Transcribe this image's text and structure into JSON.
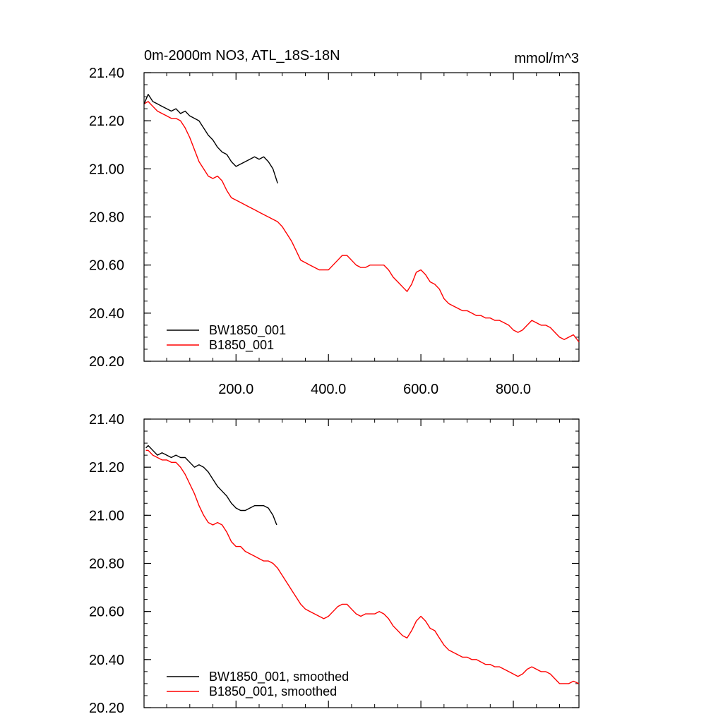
{
  "chart_data": [
    {
      "type": "line",
      "title": "0m-2000m NO3, ATL_18S-18N",
      "units": "mmol/m^3",
      "xlabel": "",
      "ylabel": "",
      "xlim": [
        1,
        942
      ],
      "ylim": [
        20.2,
        21.4
      ],
      "x_ticks": [
        200,
        400,
        600,
        800
      ],
      "x_tick_labels": [
        "200.0",
        "400.0",
        "600.0",
        "800.0"
      ],
      "y_ticks": [
        20.2,
        20.4,
        20.6,
        20.8,
        21.0,
        21.2,
        21.4
      ],
      "y_tick_labels": [
        "20.20",
        "20.40",
        "20.60",
        "20.80",
        "21.00",
        "21.20",
        "21.40"
      ],
      "grid": false,
      "legend": "bottom-left",
      "series": [
        {
          "name": "BW1850_001",
          "color": "#000000",
          "x": [
            1,
            10,
            20,
            30,
            40,
            50,
            60,
            70,
            80,
            90,
            100,
            110,
            120,
            130,
            140,
            150,
            160,
            170,
            180,
            190,
            200,
            210,
            220,
            230,
            240,
            250,
            260,
            270,
            280,
            290
          ],
          "y": [
            21.27,
            21.31,
            21.28,
            21.27,
            21.26,
            21.25,
            21.24,
            21.25,
            21.23,
            21.24,
            21.22,
            21.21,
            21.2,
            21.17,
            21.14,
            21.12,
            21.09,
            21.07,
            21.06,
            21.03,
            21.01,
            21.02,
            21.03,
            21.04,
            21.05,
            21.04,
            21.05,
            21.03,
            21.0,
            20.94
          ]
        },
        {
          "name": "B1850_001",
          "color": "#ff0000",
          "x": [
            1,
            10,
            20,
            30,
            40,
            50,
            60,
            70,
            80,
            90,
            100,
            110,
            120,
            130,
            140,
            150,
            160,
            170,
            180,
            190,
            200,
            210,
            220,
            230,
            240,
            250,
            260,
            270,
            280,
            290,
            300,
            310,
            320,
            330,
            340,
            350,
            360,
            370,
            380,
            390,
            400,
            410,
            420,
            430,
            440,
            450,
            460,
            470,
            480,
            490,
            500,
            510,
            520,
            530,
            540,
            550,
            560,
            570,
            580,
            590,
            600,
            610,
            620,
            630,
            640,
            650,
            660,
            670,
            680,
            690,
            700,
            710,
            720,
            730,
            740,
            750,
            760,
            770,
            780,
            790,
            800,
            810,
            820,
            830,
            840,
            850,
            860,
            870,
            880,
            890,
            900,
            910,
            920,
            930,
            942
          ],
          "y": [
            21.27,
            21.28,
            21.26,
            21.24,
            21.23,
            21.22,
            21.21,
            21.21,
            21.2,
            21.17,
            21.13,
            21.08,
            21.03,
            21.0,
            20.97,
            20.96,
            20.97,
            20.95,
            20.91,
            20.88,
            20.87,
            20.86,
            20.85,
            20.84,
            20.83,
            20.82,
            20.81,
            20.8,
            20.79,
            20.78,
            20.76,
            20.73,
            20.7,
            20.66,
            20.62,
            20.61,
            20.6,
            20.59,
            20.58,
            20.58,
            20.58,
            20.6,
            20.62,
            20.64,
            20.64,
            20.62,
            20.6,
            20.59,
            20.59,
            20.6,
            20.6,
            20.6,
            20.6,
            20.58,
            20.55,
            20.53,
            20.51,
            20.49,
            20.52,
            20.57,
            20.58,
            20.56,
            20.53,
            20.52,
            20.5,
            20.46,
            20.44,
            20.43,
            20.42,
            20.41,
            20.41,
            20.4,
            20.39,
            20.39,
            20.38,
            20.38,
            20.37,
            20.37,
            20.36,
            20.35,
            20.33,
            20.32,
            20.33,
            20.35,
            20.37,
            20.36,
            20.35,
            20.35,
            20.34,
            20.32,
            20.3,
            20.29,
            20.3,
            20.31,
            20.28
          ]
        }
      ]
    },
    {
      "type": "line",
      "title": "",
      "xlabel": "",
      "ylabel": "",
      "xlim": [
        1,
        942
      ],
      "ylim": [
        20.2,
        21.4
      ],
      "x_ticks": [
        200,
        400,
        600,
        800
      ],
      "x_tick_labels": [],
      "y_ticks": [
        20.2,
        20.4,
        20.6,
        20.8,
        21.0,
        21.2,
        21.4
      ],
      "y_tick_labels": [
        "20.20",
        "20.40",
        "20.60",
        "20.80",
        "21.00",
        "21.20",
        "21.40"
      ],
      "grid": false,
      "legend": "bottom-left",
      "series": [
        {
          "name": "BW1850_001, smoothed",
          "color": "#000000",
          "x": [
            5,
            10,
            20,
            30,
            40,
            50,
            60,
            70,
            80,
            90,
            100,
            110,
            120,
            130,
            140,
            150,
            160,
            170,
            180,
            190,
            200,
            210,
            220,
            230,
            240,
            250,
            260,
            270,
            280,
            288
          ],
          "y": [
            21.28,
            21.29,
            21.27,
            21.25,
            21.26,
            21.25,
            21.24,
            21.25,
            21.24,
            21.24,
            21.22,
            21.2,
            21.21,
            21.2,
            21.18,
            21.15,
            21.12,
            21.1,
            21.08,
            21.05,
            21.03,
            21.02,
            21.02,
            21.03,
            21.04,
            21.04,
            21.04,
            21.03,
            21.0,
            20.96
          ]
        },
        {
          "name": "B1850_001, smoothed",
          "color": "#ff0000",
          "x": [
            5,
            10,
            20,
            30,
            40,
            50,
            60,
            70,
            80,
            90,
            100,
            110,
            120,
            130,
            140,
            150,
            160,
            170,
            180,
            190,
            200,
            210,
            220,
            230,
            240,
            250,
            260,
            270,
            280,
            290,
            300,
            310,
            320,
            330,
            340,
            350,
            360,
            370,
            380,
            390,
            400,
            410,
            420,
            430,
            440,
            450,
            460,
            470,
            480,
            490,
            500,
            510,
            520,
            530,
            540,
            550,
            560,
            570,
            580,
            590,
            600,
            610,
            620,
            630,
            640,
            650,
            660,
            670,
            680,
            690,
            700,
            710,
            720,
            730,
            740,
            750,
            760,
            770,
            780,
            790,
            800,
            810,
            820,
            830,
            840,
            850,
            860,
            870,
            880,
            890,
            900,
            910,
            920,
            930,
            942
          ],
          "y": [
            21.27,
            21.27,
            21.25,
            21.24,
            21.23,
            21.23,
            21.22,
            21.22,
            21.2,
            21.17,
            21.13,
            21.09,
            21.04,
            21.0,
            20.97,
            20.96,
            20.97,
            20.96,
            20.93,
            20.89,
            20.87,
            20.87,
            20.85,
            20.84,
            20.83,
            20.82,
            20.81,
            20.81,
            20.8,
            20.78,
            20.75,
            20.72,
            20.69,
            20.66,
            20.63,
            20.61,
            20.6,
            20.59,
            20.58,
            20.57,
            20.58,
            20.6,
            20.62,
            20.63,
            20.63,
            20.61,
            20.59,
            20.58,
            20.59,
            20.59,
            20.59,
            20.6,
            20.59,
            20.57,
            20.54,
            20.52,
            20.5,
            20.49,
            20.52,
            20.56,
            20.58,
            20.56,
            20.53,
            20.52,
            20.49,
            20.46,
            20.44,
            20.43,
            20.42,
            20.41,
            20.41,
            20.4,
            20.4,
            20.39,
            20.38,
            20.38,
            20.37,
            20.37,
            20.36,
            20.35,
            20.34,
            20.33,
            20.34,
            20.36,
            20.37,
            20.36,
            20.35,
            20.35,
            20.34,
            20.32,
            20.3,
            20.3,
            20.3,
            20.31,
            20.3
          ]
        }
      ]
    }
  ]
}
